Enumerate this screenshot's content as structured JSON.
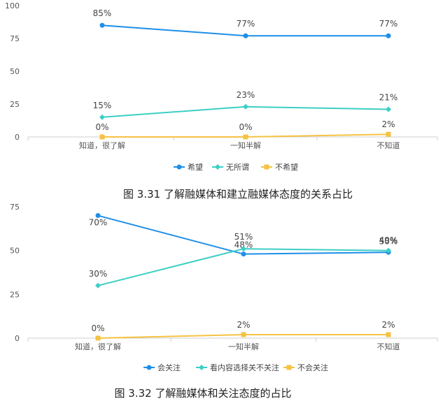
{
  "chart_data": [
    {
      "type": "line",
      "categories": [
        "知道，很了解",
        "一知半解",
        "不知道"
      ],
      "ylim": [
        0,
        100
      ],
      "yticks": [
        0,
        25,
        50,
        75,
        100
      ],
      "grid": false,
      "legend": "bottom",
      "series": [
        {
          "name": "希望",
          "values": [
            85,
            77,
            77
          ],
          "labels": [
            "85%",
            "77%",
            "77%"
          ],
          "color": "#1E8FE8",
          "marker": "circle"
        },
        {
          "name": "无所谓",
          "values": [
            15,
            23,
            21
          ],
          "labels": [
            "15%",
            "23%",
            "21%"
          ],
          "color": "#3CCFC4",
          "marker": "diamond"
        },
        {
          "name": "不希望",
          "values": [
            0,
            0,
            2
          ],
          "labels": [
            "0%",
            "0%",
            "2%"
          ],
          "color": "#F5C242",
          "marker": "square"
        }
      ]
    },
    {
      "type": "line",
      "categories": [
        "知道，很了解",
        "一知半解",
        "不知道"
      ],
      "ylim": [
        0,
        75
      ],
      "yticks": [
        0,
        25,
        50,
        75
      ],
      "grid": false,
      "legend": "bottom",
      "series": [
        {
          "name": "会关注",
          "values": [
            70,
            48,
            49
          ],
          "labels": [
            "70%",
            "48%",
            "49%"
          ],
          "color": "#1E8FE8",
          "marker": "circle"
        },
        {
          "name": "看内容选择关不关注",
          "values": [
            30,
            51,
            50
          ],
          "labels": [
            "30%",
            "51%",
            "50%"
          ],
          "color": "#3CCFC4",
          "marker": "diamond"
        },
        {
          "name": "不会关注",
          "values": [
            0,
            2,
            2
          ],
          "labels": [
            "0%",
            "2%",
            "2%"
          ],
          "color": "#F5C242",
          "marker": "square"
        }
      ]
    }
  ],
  "captions": {
    "fig1": "图 3.31   了解融媒体和建立融媒体态度的关系占比",
    "fig2": "图 3.32   了解融媒体和关注态度的占比"
  }
}
